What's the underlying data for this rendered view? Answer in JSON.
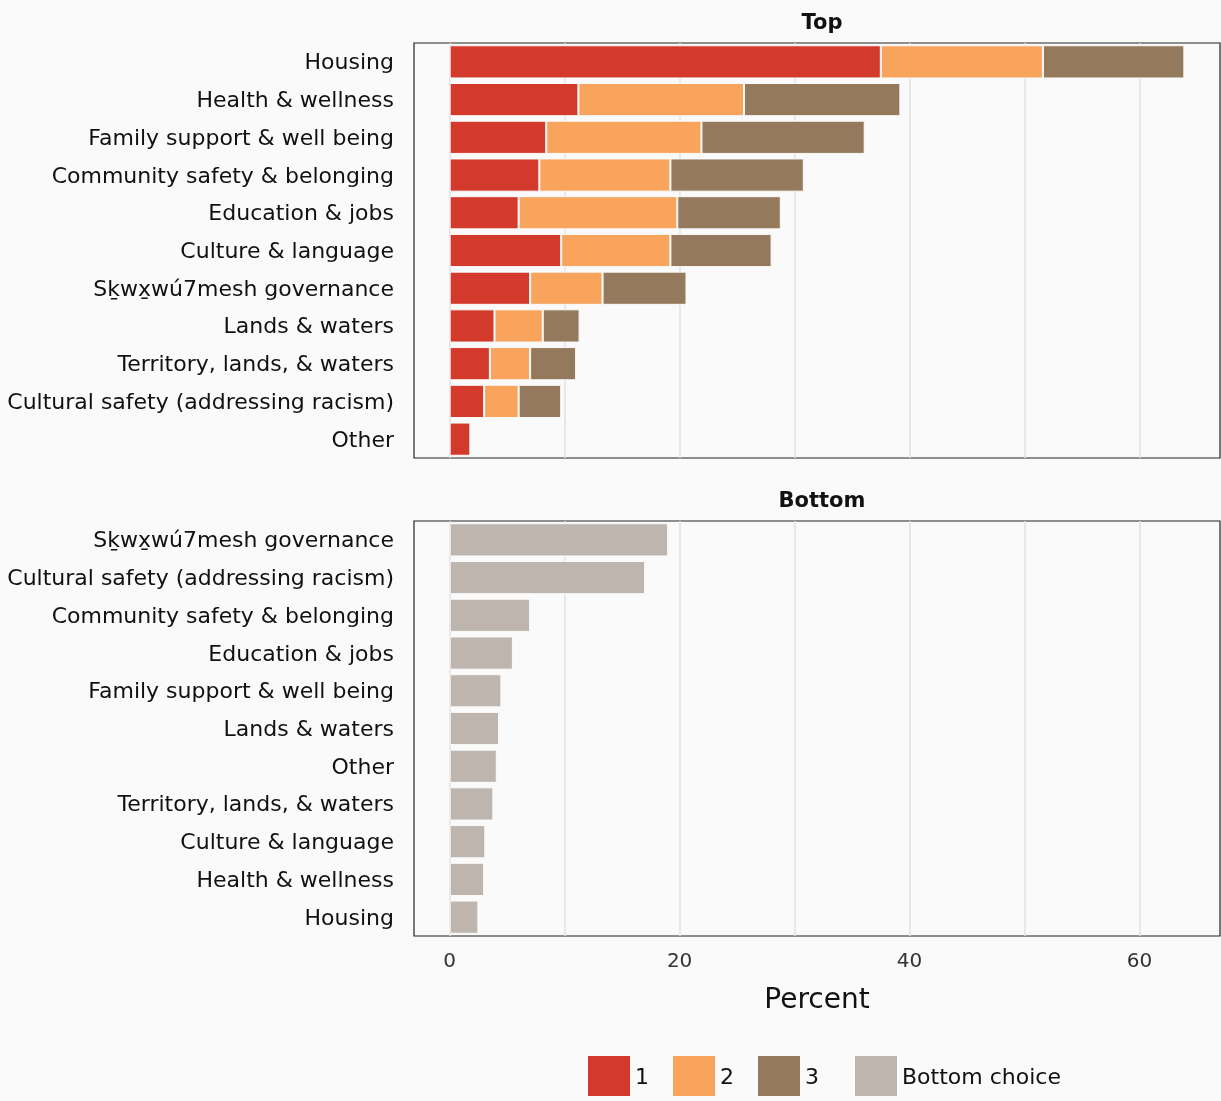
{
  "chart_data": [
    {
      "type": "bar",
      "title": "Top",
      "orientation": "horizontal",
      "stacked": true,
      "categories": [
        "Housing",
        "Health & wellness",
        "Family support & well being",
        "Community safety & belonging",
        "Education & jobs",
        "Culture & language",
        "Sḵwx̱wú7mesh governance",
        "Lands & waters",
        "Territory, lands, & waters",
        "Cultural safety (addressing racism)",
        "Other"
      ],
      "series": [
        {
          "name": "1",
          "color": "#d33a2c",
          "values": [
            37.5,
            11.2,
            8.4,
            7.8,
            6.0,
            9.7,
            7.0,
            3.9,
            3.5,
            3.0,
            1.8
          ]
        },
        {
          "name": "2",
          "color": "#f8a45c",
          "values": [
            14.1,
            14.4,
            13.5,
            11.4,
            13.8,
            9.5,
            6.3,
            4.2,
            3.5,
            3.0,
            null
          ]
        },
        {
          "name": "3",
          "color": "#94795d",
          "values": [
            12.3,
            13.6,
            14.2,
            11.6,
            9.0,
            8.8,
            7.3,
            3.2,
            4.0,
            3.7,
            null
          ]
        }
      ],
      "xlim": [
        -3.1,
        67
      ],
      "xticks": [
        0,
        {
          "value": 10,
          "label": null
        },
        20,
        {
          "value": 30,
          "label": null
        },
        40,
        {
          "value": 50,
          "label": null
        },
        60
      ],
      "grid": "x",
      "tick_labels": "y",
      "legend": "bottom"
    },
    {
      "type": "bar",
      "title": "Bottom",
      "xlabel": "Percent",
      "orientation": "horizontal",
      "categories": [
        "Sḵwx̱wú7mesh governance",
        "Cultural safety (addressing racism)",
        "Community safety & belonging",
        "Education & jobs",
        "Family support & well being",
        "Lands & waters",
        "Other",
        "Territory, lands, & waters",
        "Culture & language",
        "Health & wellness",
        "Housing"
      ],
      "series": [
        {
          "name": "Bottom choice",
          "color": "#bdb5ae",
          "values": [
            19.0,
            17.0,
            7.0,
            5.5,
            4.5,
            4.3,
            4.1,
            3.8,
            3.1,
            3.0,
            2.5
          ]
        }
      ],
      "xlim": [
        -3.1,
        67
      ],
      "xticks": [
        0,
        {
          "value": 10,
          "label": null
        },
        20,
        {
          "value": 30,
          "label": null
        },
        40,
        {
          "value": 50,
          "label": null
        },
        60
      ],
      "grid": "x",
      "legend": "bottom"
    }
  ]
}
